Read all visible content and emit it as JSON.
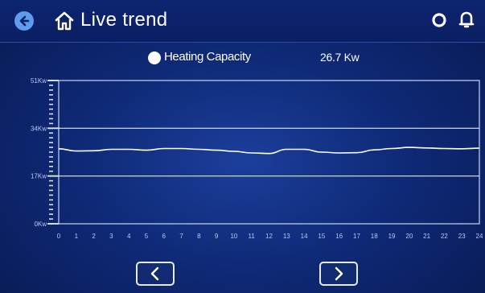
{
  "header": {
    "title": "Live trend",
    "icons": {
      "back": "back-arrow-icon",
      "home": "home-icon",
      "settings": "settings-ring-icon",
      "notification": "bell-icon"
    }
  },
  "legend": {
    "label": "Heating Capacity",
    "value": "26.7 Kw"
  },
  "colors": {
    "background": "#0f2a78",
    "header": "#0b1f63",
    "line": "#ffffff",
    "back_button": "#5d9cf0"
  },
  "chart_data": {
    "type": "line",
    "title": "",
    "xlabel": "",
    "ylabel": "",
    "x": [
      0,
      1,
      2,
      3,
      4,
      5,
      6,
      7,
      8,
      9,
      10,
      11,
      12,
      13,
      14,
      15,
      16,
      17,
      18,
      19,
      20,
      21,
      22,
      23,
      24
    ],
    "x_tick_labels": [
      "0",
      "1",
      "2",
      "3",
      "4",
      "5",
      "6",
      "7",
      "8",
      "9",
      "10",
      "11",
      "12",
      "13",
      "14",
      "15",
      "16",
      "17",
      "18",
      "19",
      "20",
      "21",
      "22",
      "23",
      "24"
    ],
    "y_tick_labels": [
      "51Kw",
      "34Kw",
      "17Kw",
      "0Kw"
    ],
    "y_ticks": [
      51,
      34,
      17,
      0
    ],
    "ylim": [
      0,
      51
    ],
    "xlim": [
      0,
      24
    ],
    "grid": true,
    "series": [
      {
        "values": [
          26.7,
          25.9,
          26.0,
          26.5,
          26.5,
          26.2,
          26.8,
          26.8,
          26.5,
          26.2,
          25.8,
          25.2,
          25.0,
          26.5,
          26.5,
          25.5,
          25.2,
          25.3,
          26.3,
          26.8,
          27.2,
          27.0,
          26.8,
          26.7,
          26.9
        ]
      }
    ]
  },
  "footer": {
    "prev_icon": "chevron-left-icon",
    "next_icon": "chevron-right-icon"
  }
}
